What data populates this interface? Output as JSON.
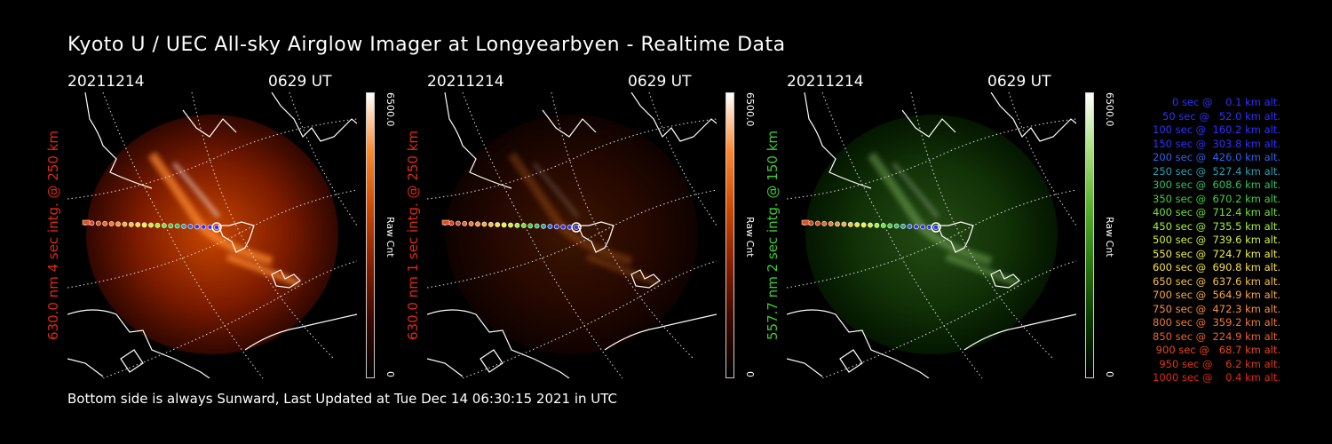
{
  "title": "Kyoto U / UEC All-sky Airglow Imager at Longyearbyen - Realtime Data",
  "footer": "Bottom side is always Sunward, Last Updated at Tue Dec 14 06:30:15 2021 in UTC",
  "panels": [
    {
      "date": "20211214",
      "time": "0629 UT",
      "ylabel": "630.0 nm 4 sec intg. @ 250 km",
      "label_color": "#e02a10",
      "cbar_max": "6500.0",
      "cbar_min": "0",
      "cbar_unit": "Raw Cnt",
      "colormap": [
        "#000000",
        "#3a0800",
        "#8a1e00",
        "#d24a00",
        "#ff8a30",
        "#ffffff"
      ],
      "intensity": 1.0
    },
    {
      "date": "20211214",
      "time": "0629 UT",
      "ylabel": "630.0 nm 1 sec intg. @ 250 km",
      "label_color": "#e02a10",
      "cbar_max": "6500.0",
      "cbar_min": "0",
      "cbar_unit": "Raw Cnt",
      "colormap": [
        "#000000",
        "#3a0800",
        "#8a1e00",
        "#d24a00",
        "#ff8a30",
        "#ffffff"
      ],
      "intensity": 0.3
    },
    {
      "date": "20211214",
      "time": "0629 UT",
      "ylabel": "557.7 nm 2 sec intg. @ 150 km",
      "label_color": "#3ad030",
      "cbar_max": "6500.0",
      "cbar_min": "0",
      "cbar_unit": "Raw Cnt",
      "colormap": [
        "#000000",
        "#0a3a00",
        "#2a7a10",
        "#58b030",
        "#a8e080",
        "#ffffff"
      ],
      "intensity": 0.45
    }
  ],
  "legend": [
    {
      "text": "   0 sec @    0.1 km alt.",
      "color": "#3030ff"
    },
    {
      "text": "  50 sec @   52.0 km alt.",
      "color": "#3030ff"
    },
    {
      "text": " 100 sec @  160.2 km alt.",
      "color": "#3030ff"
    },
    {
      "text": " 150 sec @  303.8 km alt.",
      "color": "#3030ff"
    },
    {
      "text": " 200 sec @  426.0 km alt.",
      "color": "#3060f0"
    },
    {
      "text": " 250 sec @  527.4 km alt.",
      "color": "#2aa0b0"
    },
    {
      "text": " 300 sec @  608.6 km alt.",
      "color": "#30c060"
    },
    {
      "text": " 350 sec @  670.2 km alt.",
      "color": "#40d040"
    },
    {
      "text": " 400 sec @  712.4 km alt.",
      "color": "#70e040"
    },
    {
      "text": " 450 sec @  735.5 km alt.",
      "color": "#a0f040"
    },
    {
      "text": " 500 sec @  739.6 km alt.",
      "color": "#d0f040"
    },
    {
      "text": " 550 sec @  724.7 km alt.",
      "color": "#f0f040"
    },
    {
      "text": " 600 sec @  690.8 km alt.",
      "color": "#f8e040"
    },
    {
      "text": " 650 sec @  637.6 km alt.",
      "color": "#f8c040"
    },
    {
      "text": " 700 sec @  564.9 km alt.",
      "color": "#f8a840"
    },
    {
      "text": " 750 sec @  472.3 km alt.",
      "color": "#f89040"
    },
    {
      "text": " 800 sec @  359.2 km alt.",
      "color": "#f07830"
    },
    {
      "text": " 850 sec @  224.9 km alt.",
      "color": "#f06028"
    },
    {
      "text": " 900 sec @   68.7 km alt.",
      "color": "#e84820"
    },
    {
      "text": " 950 sec @    6.2 km alt.",
      "color": "#e03818"
    },
    {
      "text": "1000 sec @    0.4 km alt.",
      "color": "#e02a10"
    }
  ]
}
